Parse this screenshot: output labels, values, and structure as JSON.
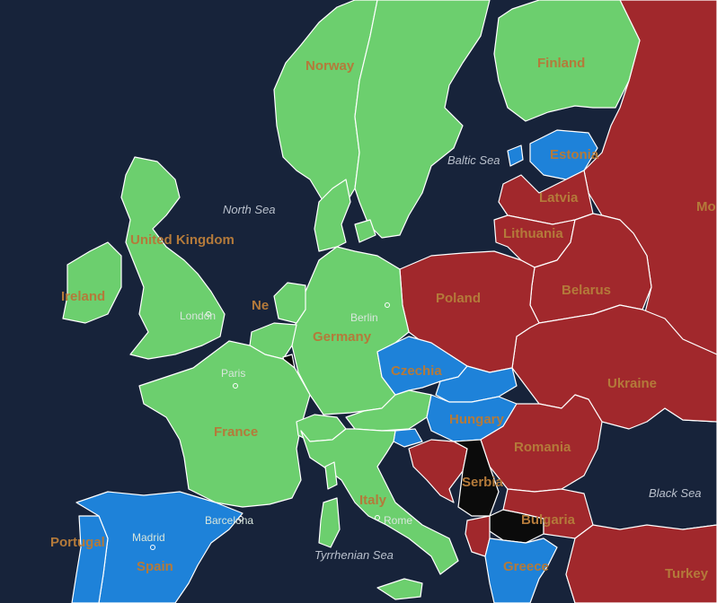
{
  "colors": {
    "sea": "#17233a",
    "green": "#6ccf6e",
    "blue": "#1e82d9",
    "red": "#a1282c",
    "black": "#0b0b0b",
    "country_label": "#b47a3a",
    "sea_label": "#b9c0cc",
    "city_label": "#d8e6dc"
  },
  "countries": {
    "norway": {
      "name": "Norway",
      "color": "green"
    },
    "sweden": {
      "name": "",
      "color": "green"
    },
    "finland": {
      "name": "Finland",
      "color": "green"
    },
    "estonia": {
      "name": "Estonia",
      "color": "blue"
    },
    "latvia": {
      "name": "Latvia",
      "color": "red"
    },
    "lithuania": {
      "name": "Lithuania",
      "color": "red"
    },
    "russia": {
      "name": "Mo",
      "color": "red"
    },
    "united_kingdom": {
      "name": "United Kingdom",
      "color": "green"
    },
    "ireland": {
      "name": "Ireland",
      "color": "green"
    },
    "netherlands": {
      "name": "Ne",
      "color": "green"
    },
    "germany": {
      "name": "Germany",
      "color": "green"
    },
    "poland": {
      "name": "Poland",
      "color": "red"
    },
    "belarus": {
      "name": "Belarus",
      "color": "red"
    },
    "ukraine": {
      "name": "Ukraine",
      "color": "red"
    },
    "czechia": {
      "name": "Czechia",
      "color": "blue"
    },
    "slovakia": {
      "name": "",
      "color": "blue"
    },
    "hungary": {
      "name": "Hungary",
      "color": "blue"
    },
    "austria": {
      "name": "",
      "color": "green"
    },
    "france": {
      "name": "France",
      "color": "green"
    },
    "switzerland": {
      "name": "",
      "color": "green"
    },
    "italy": {
      "name": "Italy",
      "color": "green"
    },
    "spain": {
      "name": "Spain",
      "color": "blue"
    },
    "portugal": {
      "name": "Portugal",
      "color": "blue"
    },
    "romania": {
      "name": "Romania",
      "color": "red"
    },
    "serbia": {
      "name": "Serbia",
      "color": "black"
    },
    "bulgaria": {
      "name": "Bulgaria",
      "color": "black"
    },
    "greece": {
      "name": "Greece",
      "color": "blue"
    },
    "turkey": {
      "name": "Turkey",
      "color": "red"
    },
    "croatia": {
      "name": "",
      "color": "red"
    },
    "denmark": {
      "name": "",
      "color": "green"
    },
    "belgium": {
      "name": "",
      "color": "green"
    },
    "luxembourg": {
      "name": "",
      "color": "black"
    }
  },
  "seas": {
    "north_sea": "North Sea",
    "baltic_sea": "Baltic Sea",
    "black_sea": "Black Sea",
    "tyrrhenian_sea": "Tyrrhenian Sea"
  },
  "cities": {
    "london": "London",
    "paris": "Paris",
    "berlin": "Berlin",
    "madrid": "Madrid",
    "barcelona": "Barcelona",
    "rome": "Rome"
  }
}
